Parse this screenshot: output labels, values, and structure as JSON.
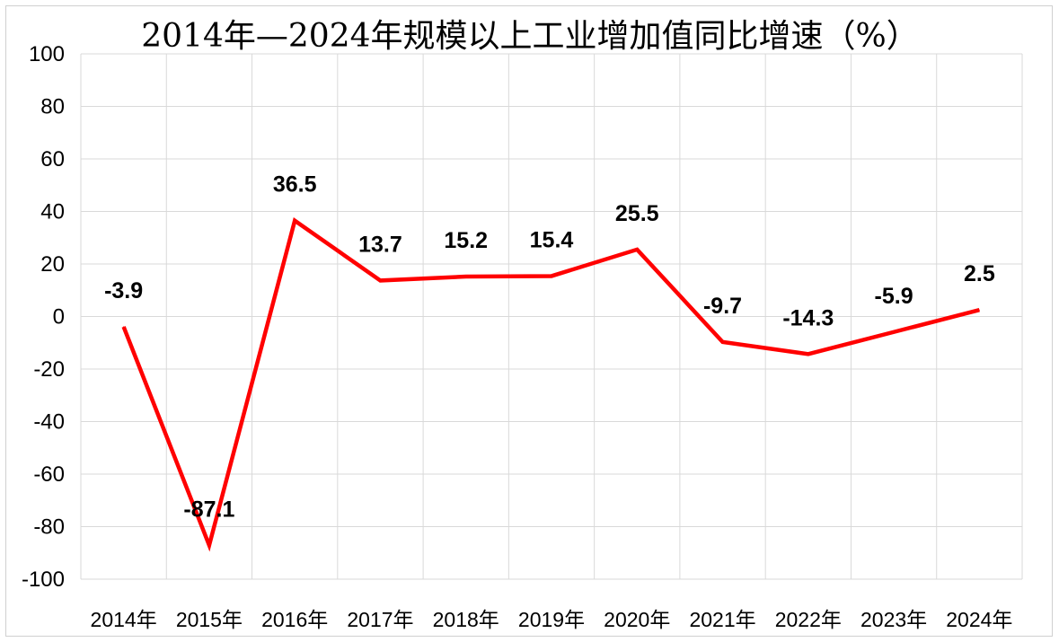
{
  "chart_data": {
    "type": "line",
    "title": "2014年—2024年规模以上工业增加值同比增速（%）",
    "categories": [
      "2014年",
      "2015年",
      "2016年",
      "2017年",
      "2018年",
      "2019年",
      "2020年",
      "2021年",
      "2022年",
      "2023年",
      "2024年"
    ],
    "series": [
      {
        "values": [
          -3.9,
          -87.1,
          36.5,
          13.7,
          15.2,
          15.4,
          25.5,
          -9.7,
          -14.3,
          -5.9,
          2.5
        ],
        "color": "#ff0000"
      }
    ],
    "data_labels": [
      "-3.9",
      "-87.1",
      "36.5",
      "13.7",
      "15.2",
      "15.4",
      "25.5",
      "-9.7",
      "-14.3",
      "-5.9",
      "2.5"
    ],
    "y_ticks": [
      "100",
      "80",
      "60",
      "40",
      "20",
      "0",
      "-20",
      "-40",
      "-60",
      "-80",
      "-100"
    ],
    "ylim": [
      -100,
      100
    ],
    "grid": true,
    "legend": "none"
  }
}
